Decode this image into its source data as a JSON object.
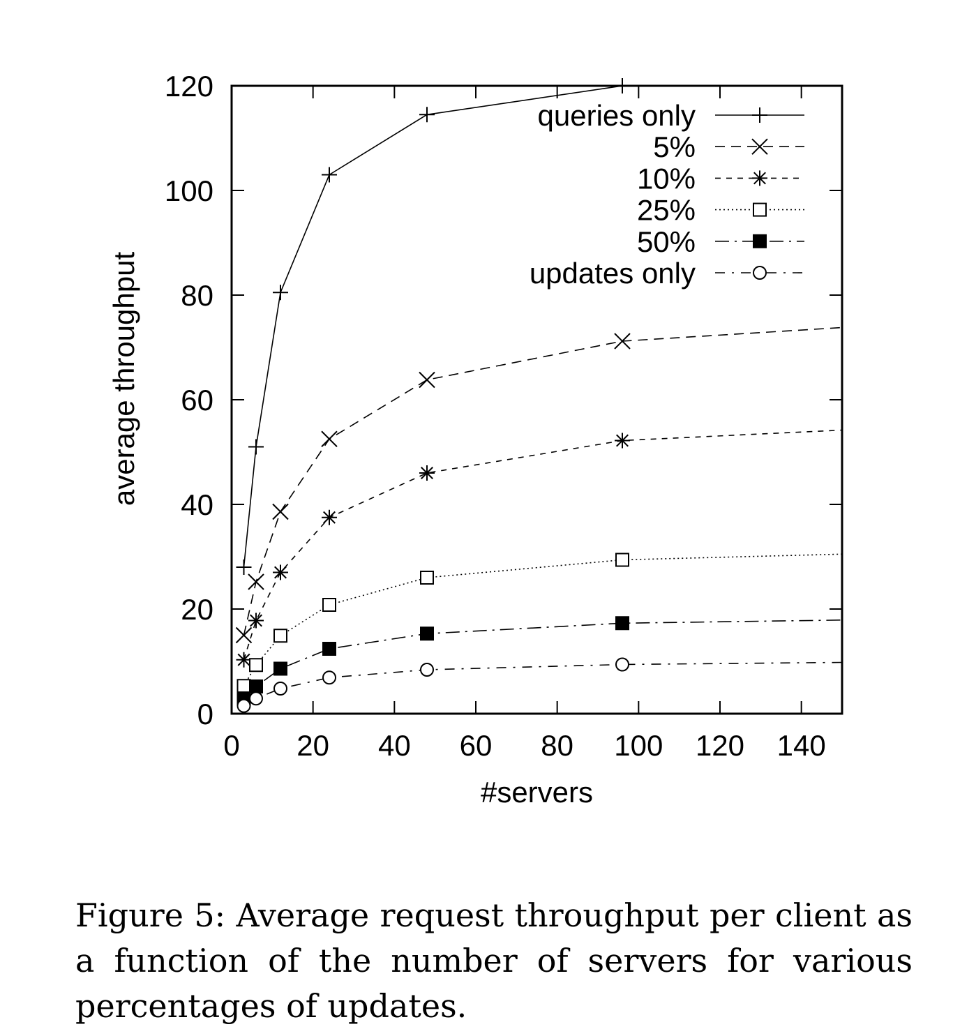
{
  "chart_data": {
    "type": "line",
    "xlabel": "#servers",
    "ylabel": "average throughput",
    "xlim": [
      0,
      150
    ],
    "ylim": [
      0,
      120
    ],
    "xticks": [
      0,
      20,
      40,
      60,
      80,
      100,
      120,
      140
    ],
    "yticks": [
      0,
      20,
      40,
      60,
      80,
      100,
      120
    ],
    "grid": false,
    "legend_position": "top-right",
    "series": [
      {
        "name": "queries only",
        "marker": "plus",
        "dash": "solid",
        "x": [
          3,
          6,
          12,
          24,
          48,
          96,
          150
        ],
        "y": [
          28,
          51,
          80.5,
          103,
          114.5,
          120,
          121
        ]
      },
      {
        "name": "5%",
        "marker": "cross",
        "dash": "dashed",
        "x": [
          3,
          6,
          12,
          24,
          48,
          96,
          150
        ],
        "y": [
          15,
          25.2,
          38.6,
          52.5,
          63.8,
          71.2,
          73.8
        ]
      },
      {
        "name": "10%",
        "marker": "asterisk",
        "dash": "short-dashed",
        "x": [
          3,
          6,
          12,
          24,
          48,
          96,
          150
        ],
        "y": [
          10.3,
          17.8,
          27,
          37.5,
          46,
          52.2,
          54.2
        ]
      },
      {
        "name": "25%",
        "marker": "open-square",
        "dash": "dotted",
        "x": [
          3,
          6,
          12,
          24,
          48,
          96,
          150
        ],
        "y": [
          5.3,
          9.3,
          14.9,
          20.8,
          26,
          29.4,
          30.5
        ]
      },
      {
        "name": "50%",
        "marker": "filled-square",
        "dash": "dash-dot",
        "x": [
          3,
          6,
          12,
          24,
          48,
          96,
          150
        ],
        "y": [
          2.9,
          5.2,
          8.6,
          12.4,
          15.3,
          17.3,
          17.9
        ]
      },
      {
        "name": "updates only",
        "marker": "open-circle",
        "dash": "dash-dot-sparse",
        "x": [
          3,
          6,
          12,
          24,
          48,
          96,
          150
        ],
        "y": [
          1.5,
          2.9,
          4.8,
          6.9,
          8.4,
          9.4,
          9.8
        ]
      }
    ]
  },
  "caption": "Figure 5: Average request throughput per client as a function of the number of servers for various percentages of updates."
}
